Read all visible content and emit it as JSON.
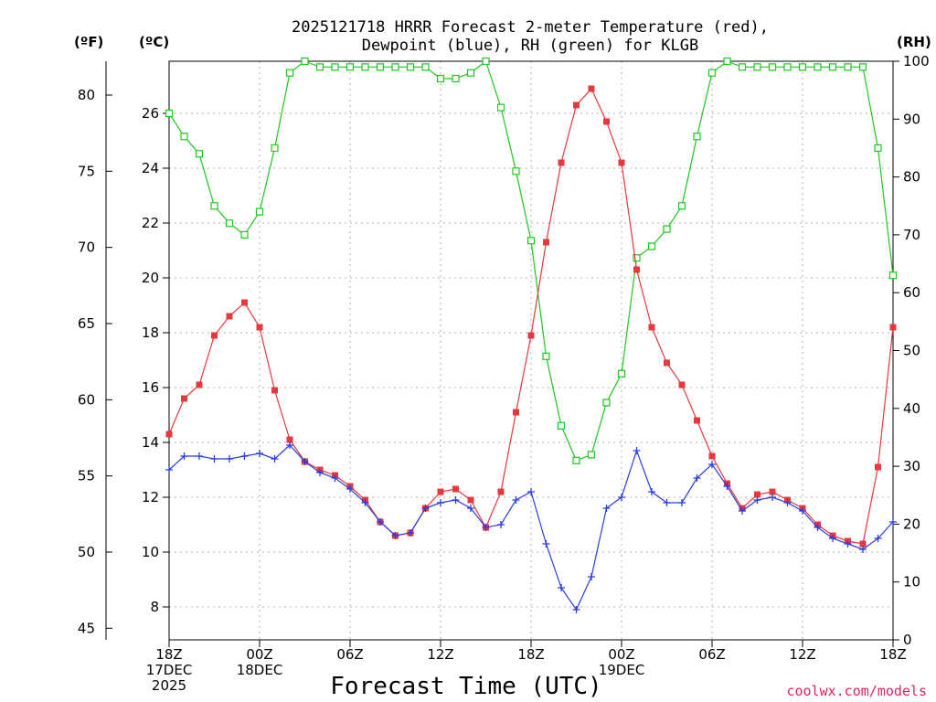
{
  "chart_data": {
    "type": "line",
    "title": "2025121718 HRRR Forecast 2-meter Temperature (red),",
    "subtitle": "Dewpoint (blue), RH (green) for KLGB",
    "xlabel": "Forecast Time (UTC)",
    "units": {
      "fahrenheit": "(ºF)",
      "celsius": "(ºC)",
      "rh": "(RH)"
    },
    "credit": "coolwx.com/models",
    "x_hours": [
      0,
      1,
      2,
      3,
      4,
      5,
      6,
      7,
      8,
      9,
      10,
      11,
      12,
      13,
      14,
      15,
      16,
      17,
      18,
      19,
      20,
      21,
      22,
      23,
      24,
      25,
      26,
      27,
      28,
      29,
      30,
      31,
      32,
      33,
      34,
      35,
      36,
      37,
      38,
      39,
      40,
      41,
      42,
      43,
      44,
      45,
      46,
      47,
      48
    ],
    "xlim": [
      0,
      48
    ],
    "x_ticks": [
      {
        "hour": 0,
        "lines": [
          "18Z",
          "17DEC",
          "2025"
        ]
      },
      {
        "hour": 6,
        "lines": [
          "00Z",
          "18DEC"
        ]
      },
      {
        "hour": 12,
        "lines": [
          "06Z"
        ]
      },
      {
        "hour": 18,
        "lines": [
          "12Z"
        ]
      },
      {
        "hour": 24,
        "lines": [
          "18Z"
        ]
      },
      {
        "hour": 30,
        "lines": [
          "00Z",
          "19DEC"
        ]
      },
      {
        "hour": 36,
        "lines": [
          "06Z"
        ]
      },
      {
        "hour": 42,
        "lines": [
          "12Z"
        ]
      },
      {
        "hour": 48,
        "lines": [
          "18Z"
        ]
      }
    ],
    "celsius_axis": {
      "ylim": [
        6.8,
        27.9
      ],
      "ticks": [
        8,
        10,
        12,
        14,
        16,
        18,
        20,
        22,
        24,
        26
      ]
    },
    "fahrenheit_axis": {
      "ylim": [
        44.24,
        82.22
      ],
      "ticks": [
        45,
        50,
        55,
        60,
        65,
        70,
        75,
        80
      ]
    },
    "rh_axis": {
      "ylim": [
        0,
        100
      ],
      "ticks": [
        0,
        10,
        20,
        30,
        40,
        50,
        60,
        70,
        80,
        90,
        100
      ]
    },
    "series": [
      {
        "name": "Temperature",
        "axis": "celsius",
        "color": "#e8383d",
        "marker": "filled-square",
        "values": [
          14.3,
          15.6,
          16.1,
          17.9,
          18.6,
          19.1,
          18.2,
          15.9,
          14.1,
          13.3,
          13.0,
          12.8,
          12.4,
          11.9,
          11.1,
          10.6,
          10.7,
          11.6,
          12.2,
          12.3,
          11.9,
          10.9,
          12.2,
          15.1,
          17.9,
          21.3,
          24.2,
          26.3,
          26.9,
          25.7,
          24.2,
          20.3,
          18.2,
          16.9,
          16.1,
          14.8,
          13.5,
          12.5,
          11.6,
          12.1,
          12.2,
          11.9,
          11.6,
          11.0,
          10.6,
          10.4,
          10.3,
          13.1,
          18.2
        ]
      },
      {
        "name": "Dewpoint",
        "axis": "celsius",
        "color": "#2b3de8",
        "marker": "plus",
        "values": [
          13.0,
          13.5,
          13.5,
          13.4,
          13.4,
          13.5,
          13.6,
          13.4,
          13.9,
          13.3,
          12.9,
          12.7,
          12.3,
          11.8,
          11.1,
          10.6,
          10.7,
          11.6,
          11.8,
          11.9,
          11.6,
          10.9,
          11.0,
          11.9,
          12.2,
          10.3,
          8.7,
          7.9,
          9.1,
          11.6,
          12.0,
          13.7,
          12.2,
          11.8,
          11.8,
          12.7,
          13.2,
          12.4,
          11.5,
          11.9,
          12.0,
          11.8,
          11.5,
          10.9,
          10.5,
          10.3,
          10.1,
          10.5,
          11.1
        ]
      },
      {
        "name": "RH",
        "axis": "rh",
        "color": "#1ec81e",
        "marker": "open-square",
        "values": [
          91,
          87,
          84,
          75,
          72,
          70,
          74,
          85,
          98,
          100,
          99,
          99,
          99,
          99,
          99,
          99,
          99,
          99,
          97,
          97,
          98,
          100,
          92,
          81,
          69,
          49,
          37,
          31,
          32,
          41,
          46,
          66,
          68,
          71,
          75,
          87,
          98,
          100,
          99,
          99,
          99,
          99,
          99,
          99,
          99,
          99,
          99,
          85,
          63
        ]
      }
    ]
  }
}
